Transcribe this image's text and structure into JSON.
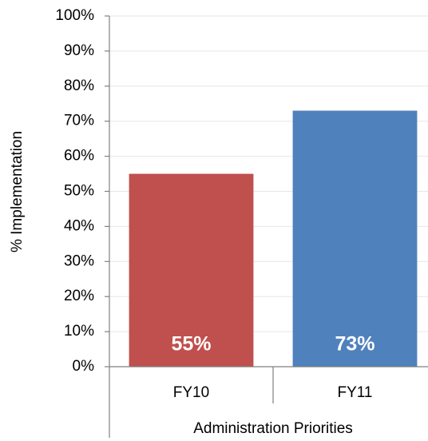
{
  "chart_data": {
    "type": "bar",
    "categories": [
      "FY10",
      "FY11"
    ],
    "values": [
      55,
      73
    ],
    "value_labels": [
      "55%",
      "73%"
    ],
    "colors": [
      "#c0504d",
      "#4f81bd"
    ],
    "ylabel": "% Implementation",
    "xlabel": "Administration Priorities",
    "ylim": [
      0,
      100
    ],
    "yticks": [
      {
        "value": 0,
        "label": "0%"
      },
      {
        "value": 10,
        "label": "10%"
      },
      {
        "value": 20,
        "label": "20%"
      },
      {
        "value": 30,
        "label": "30%"
      },
      {
        "value": 40,
        "label": "40%"
      },
      {
        "value": 50,
        "label": "50%"
      },
      {
        "value": 60,
        "label": "60%"
      },
      {
        "value": 70,
        "label": "70%"
      },
      {
        "value": 80,
        "label": "80%"
      },
      {
        "value": 90,
        "label": "90%"
      },
      {
        "value": 100,
        "label": "100%"
      }
    ],
    "grid": true
  }
}
